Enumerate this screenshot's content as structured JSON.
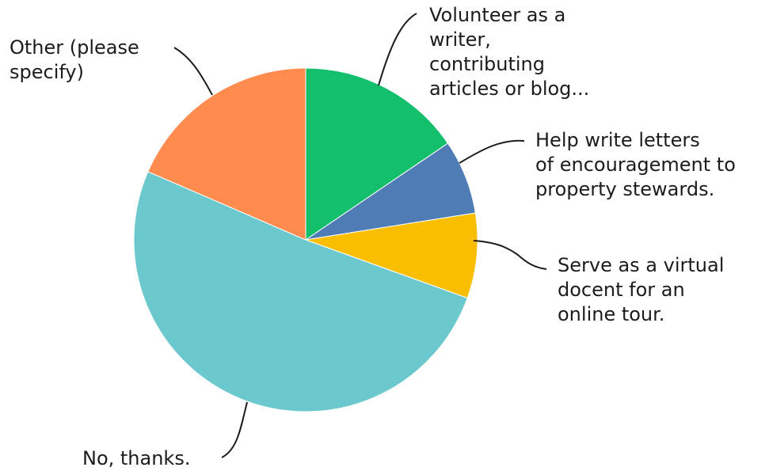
{
  "chart_data": {
    "type": "pie",
    "title": "",
    "start": "12 o'clock",
    "direction": "clockwise",
    "unit": "percent",
    "slices": [
      {
        "label": "Volunteer as a\nwriter,\ncontributing\narticles or blog...",
        "value": 15.5,
        "color": "#14BF6B"
      },
      {
        "label": "Help write letters\nof encouragement to\nproperty stewards.",
        "value": 7.0,
        "color": "#507CB6"
      },
      {
        "label": "Serve as a virtual\ndocent for an\nonline tour.",
        "value": 8.0,
        "color": "#F9BE00"
      },
      {
        "label": "No, thanks.",
        "value": 51.0,
        "color": "#6BC8CD"
      },
      {
        "label": "Other (please\nspecify)",
        "value": 18.5,
        "color": "#FF8B4F"
      }
    ]
  }
}
